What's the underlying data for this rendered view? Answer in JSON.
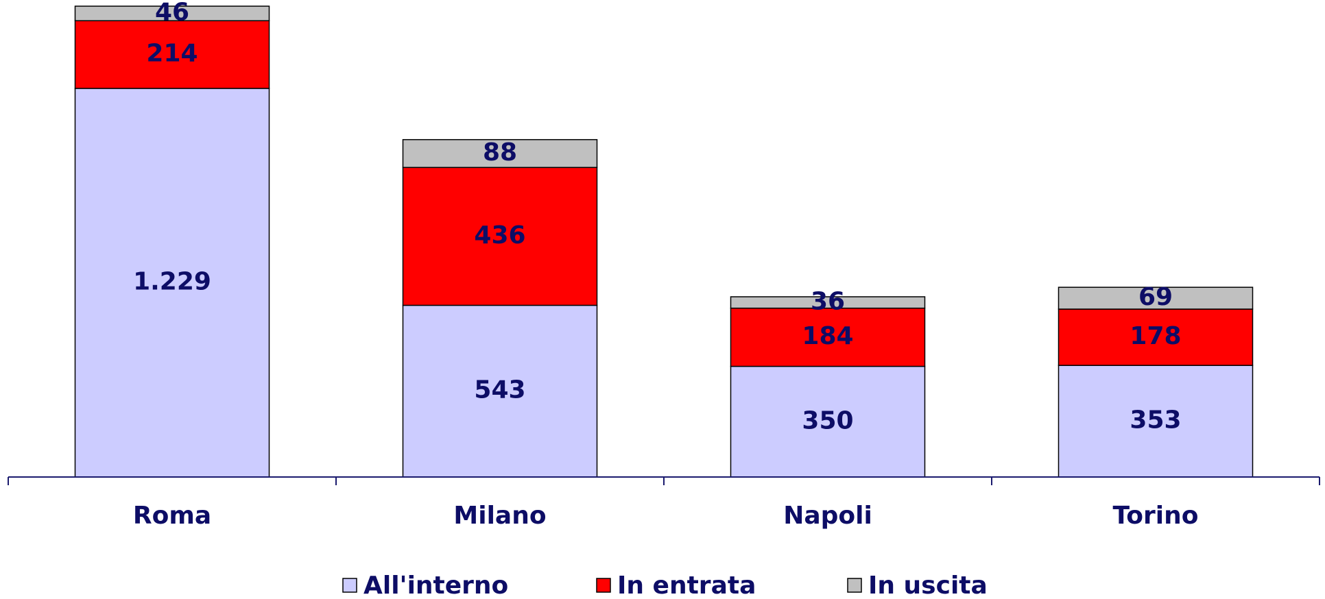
{
  "chart_data": {
    "type": "stacked_bar",
    "categories": [
      "Roma",
      "Milano",
      "Napoli",
      "Torino"
    ],
    "series": [
      {
        "name": "All'interno",
        "color": "#ccccff",
        "values": [
          1229,
          543,
          350,
          353
        ],
        "value_labels": [
          "1.229",
          "543",
          "350",
          "353"
        ]
      },
      {
        "name": "In entrata",
        "color": "#ff0000",
        "values": [
          214,
          436,
          184,
          178
        ]
      },
      {
        "name": "In uscita",
        "color": "#c0c0c0",
        "values": [
          46,
          88,
          36,
          69
        ]
      }
    ]
  }
}
